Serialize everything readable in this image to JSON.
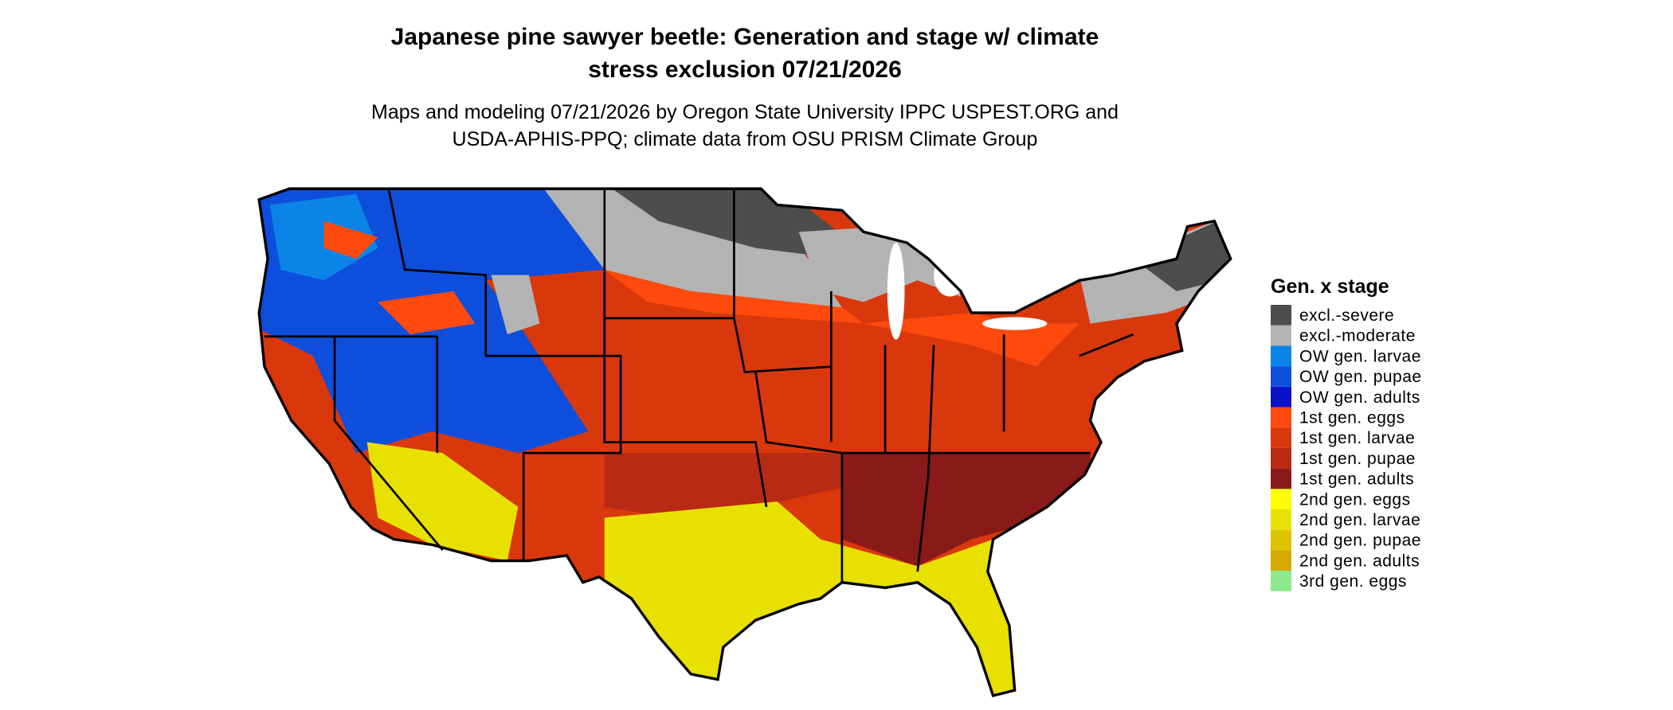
{
  "title": [
    "Japanese pine sawyer beetle: Generation and stage w/ climate",
    "stress exclusion 07/21/2026"
  ],
  "subtitle": [
    "Maps and modeling 07/21/2026 by Oregon State University IPPC USPEST.ORG and",
    "USDA-APHIS-PPQ; climate data from OSU PRISM Climate Group"
  ],
  "legend": {
    "title": "Gen. x stage",
    "items": [
      {
        "name": "excl.-severe",
        "color": "#4d4d4d"
      },
      {
        "name": "excl.-moderate",
        "color": "#b3b3b3"
      },
      {
        "name": "OW gen. larvae",
        "color": "#0b84e8"
      },
      {
        "name": "OW gen. pupae",
        "color": "#0d4fdc"
      },
      {
        "name": "OW gen. adults",
        "color": "#0a12c9"
      },
      {
        "name": "1st gen. eggs",
        "color": "#ff4a0d"
      },
      {
        "name": "1st gen. larvae",
        "color": "#d9380c"
      },
      {
        "name": "1st gen. pupae",
        "color": "#b82a14"
      },
      {
        "name": "1st gen. adults",
        "color": "#8a1a1a"
      },
      {
        "name": "2nd gen. eggs",
        "color": "#ffff00"
      },
      {
        "name": "2nd gen. larvae",
        "color": "#e8e000"
      },
      {
        "name": "2nd gen. pupae",
        "color": "#dcc400"
      },
      {
        "name": "2nd gen. adults",
        "color": "#d4aa00"
      },
      {
        "name": "3rd gen. eggs",
        "color": "#8ee88e"
      }
    ]
  }
}
